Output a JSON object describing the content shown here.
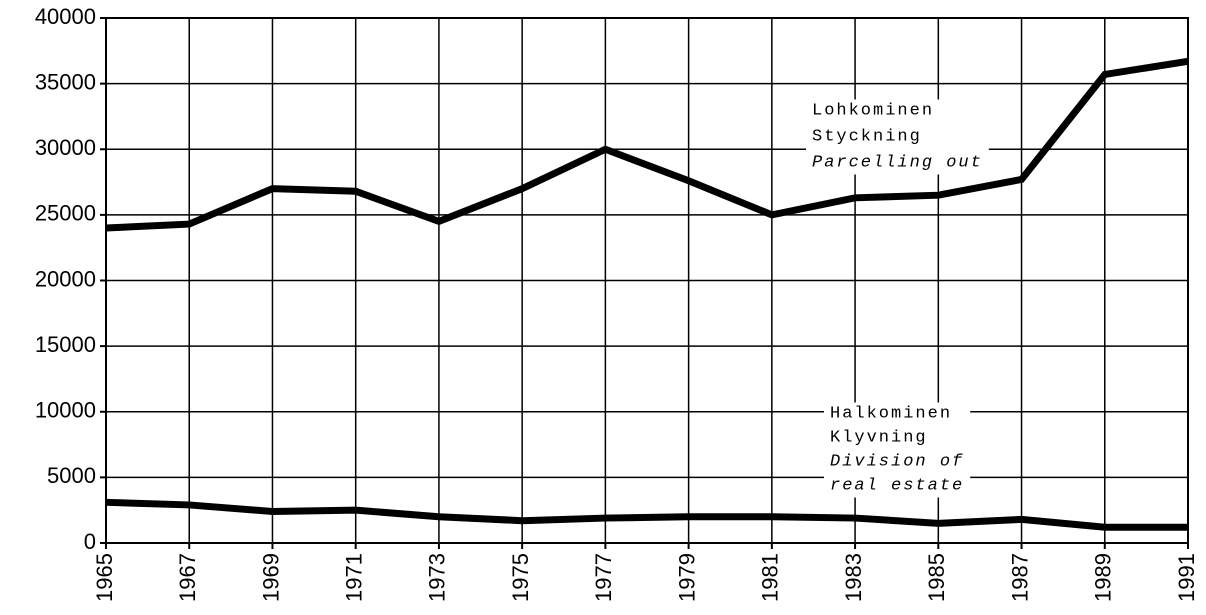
{
  "chart_data": {
    "type": "line",
    "x": [
      1965,
      1967,
      1969,
      1971,
      1973,
      1975,
      1977,
      1979,
      1981,
      1983,
      1985,
      1987,
      1989,
      1991
    ],
    "series": [
      {
        "color": "#000000",
        "values": [
          24000,
          24300,
          27000,
          26800,
          24500,
          27000,
          30000,
          27600,
          25000,
          26300,
          26500,
          27700,
          35700,
          36700
        ]
      },
      {
        "color": "#000000",
        "values": [
          3100,
          2900,
          2400,
          2500,
          2000,
          1700,
          1900,
          2000,
          2000,
          1900,
          1500,
          1800,
          1200,
          1200
        ]
      }
    ],
    "annotations": [
      {
        "lines": [
          "Lohkominen",
          "Styckning",
          "Parcelling out"
        ],
        "italic_lines": [
          2
        ]
      },
      {
        "lines": [
          "Halkominen",
          "Klyvning",
          "Division of",
          "real estate"
        ],
        "italic_lines": [
          2,
          3
        ]
      }
    ],
    "xlim": [
      1965,
      1991
    ],
    "xticks": [
      1965,
      1967,
      1969,
      1971,
      1973,
      1975,
      1977,
      1979,
      1981,
      1983,
      1985,
      1987,
      1989,
      1991
    ],
    "ylim": [
      0,
      40000
    ],
    "yticks": [
      0,
      5000,
      10000,
      15000,
      20000,
      25000,
      30000,
      35000,
      40000
    ],
    "grid": true
  }
}
